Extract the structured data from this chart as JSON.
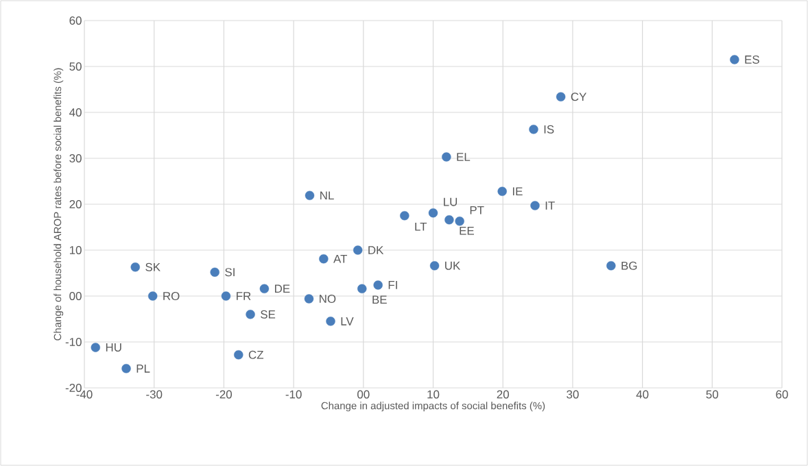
{
  "chart_data": {
    "type": "scatter",
    "xlabel": "Change in adjusted impacts of social benefits (%)",
    "ylabel": "Change of household AROP rates before social benefits (%)",
    "x": [
      53.2,
      28.3,
      24.4,
      11.9,
      19.9,
      24.6,
      -7.7,
      5.9,
      10.0,
      12.3,
      13.8,
      -0.8,
      -5.7,
      10.2,
      35.5,
      -32.7,
      -21.3,
      -14.2,
      -0.2,
      2.1,
      -30.2,
      -19.7,
      -7.8,
      -16.2,
      -4.7,
      -38.4,
      -34.0,
      -17.9
    ],
    "values": [
      51.5,
      43.4,
      36.3,
      30.3,
      22.8,
      19.7,
      21.9,
      17.5,
      18.1,
      16.6,
      16.3,
      10.0,
      8.1,
      6.6,
      6.6,
      6.3,
      5.2,
      1.6,
      1.6,
      2.4,
      0.0,
      0.0,
      -0.6,
      -4.0,
      -5.5,
      -11.2,
      -15.8,
      -12.8
    ],
    "color": "#4a7ebb",
    "marker": "circle",
    "annotations": [
      {
        "text": "ES",
        "x": 53.2,
        "y": 51.5
      },
      {
        "text": "CY",
        "x": 28.3,
        "y": 43.4
      },
      {
        "text": "IS",
        "x": 24.4,
        "y": 36.3
      },
      {
        "text": "EL",
        "x": 11.9,
        "y": 30.3
      },
      {
        "text": "IE",
        "x": 19.9,
        "y": 22.8
      },
      {
        "text": "IT",
        "x": 24.6,
        "y": 19.7
      },
      {
        "text": "NL",
        "x": -7.7,
        "y": 21.9
      },
      {
        "text": "LT",
        "x": 5.9,
        "y": 17.5
      },
      {
        "text": "LU",
        "x": 10.0,
        "y": 18.1
      },
      {
        "text": "EE",
        "x": 12.3,
        "y": 16.6
      },
      {
        "text": "PT",
        "x": 13.8,
        "y": 16.3
      },
      {
        "text": "DK",
        "x": -0.8,
        "y": 10.0
      },
      {
        "text": "AT",
        "x": -5.7,
        "y": 8.1
      },
      {
        "text": "UK",
        "x": 10.2,
        "y": 6.6
      },
      {
        "text": "BG",
        "x": 35.5,
        "y": 6.6
      },
      {
        "text": "SK",
        "x": -32.7,
        "y": 6.3
      },
      {
        "text": "SI",
        "x": -21.3,
        "y": 5.2
      },
      {
        "text": "DE",
        "x": -14.2,
        "y": 1.6
      },
      {
        "text": "BE",
        "x": -0.2,
        "y": 1.6
      },
      {
        "text": "FI",
        "x": 2.1,
        "y": 2.4
      },
      {
        "text": "RO",
        "x": -30.2,
        "y": 0.0
      },
      {
        "text": "FR",
        "x": -19.7,
        "y": 0.0
      },
      {
        "text": "NO",
        "x": -7.8,
        "y": -0.6
      },
      {
        "text": "SE",
        "x": -16.2,
        "y": -4.0
      },
      {
        "text": "LV",
        "x": -4.7,
        "y": -5.5
      },
      {
        "text": "HU",
        "x": -38.4,
        "y": -11.2
      },
      {
        "text": "PL",
        "x": -34.0,
        "y": -15.8
      },
      {
        "text": "CZ",
        "x": -17.9,
        "y": -12.8
      }
    ],
    "xlim": [
      -40,
      60
    ],
    "ylim": [
      -20,
      60
    ],
    "xticks": [
      -40,
      -30,
      -20,
      -10,
      {
        "value": 0,
        "label": "00"
      },
      10,
      20,
      30,
      40,
      50,
      60
    ],
    "yticks": [
      -20,
      -10,
      {
        "value": 0,
        "label": "00"
      },
      10,
      20,
      30,
      40,
      50,
      60
    ],
    "grid": true
  }
}
